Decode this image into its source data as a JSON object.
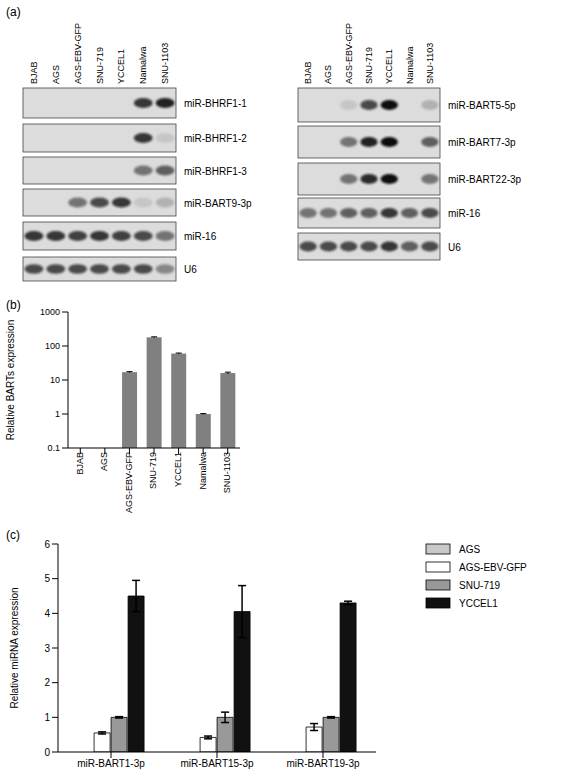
{
  "blots": {
    "panel_label": "(a)",
    "groups": [
      {
        "lanes": [
          "BJAB",
          "AGS",
          "AGS-EBV-GFP",
          "SNU-719",
          "YCCEL1",
          "Namalwa",
          "SNU-1103"
        ],
        "rows": [
          {
            "label": "miR-BHRF1-1",
            "bands": [
              0,
              0,
              0,
              0,
              0,
              0.8,
              0.9
            ]
          },
          {
            "label": "miR-BHRF1-2",
            "bands": [
              0,
              0,
              0,
              0,
              0,
              0.8,
              0.1
            ]
          },
          {
            "label": "miR-BHRF1-3",
            "bands": [
              0,
              0,
              0,
              0,
              0,
              0.5,
              0.6
            ]
          },
          {
            "label": "miR-BART9-3p",
            "bands": [
              0,
              0,
              0.5,
              0.7,
              0.8,
              0.1,
              0.2
            ]
          },
          {
            "label": "miR-16",
            "bands": [
              0.8,
              0.8,
              0.75,
              0.8,
              0.75,
              0.7,
              0.5
            ]
          },
          {
            "label": "U6",
            "bands": [
              0.7,
              0.7,
              0.7,
              0.7,
              0.7,
              0.7,
              0.4
            ]
          }
        ]
      },
      {
        "lanes": [
          "BJAB",
          "AGS",
          "AGS-EBV-GFP",
          "SNU-719",
          "YCCEL1",
          "Namalwa",
          "SNU-1103"
        ],
        "rows": [
          {
            "label": "miR-BART5-5p",
            "bands": [
              0,
              0,
              0.1,
              0.7,
              1,
              0,
              0.2
            ]
          },
          {
            "label": "miR-BART7-3p",
            "bands": [
              0,
              0,
              0.5,
              0.9,
              1,
              0,
              0.6
            ]
          },
          {
            "label": "miR-BART22-3p",
            "bands": [
              0,
              0,
              0.5,
              0.85,
              1,
              0,
              0.5
            ]
          },
          {
            "label": "miR-16",
            "bands": [
              0.5,
              0.5,
              0.6,
              0.6,
              0.8,
              0.6,
              0.7
            ]
          },
          {
            "label": "U6",
            "bands": [
              0.7,
              0.7,
              0.7,
              0.7,
              0.8,
              0.6,
              0.7
            ]
          }
        ]
      }
    ]
  },
  "chart_data": [
    {
      "panel_label": "(b)",
      "type": "bar",
      "categories": [
        "BJAB",
        "AGS",
        "AGS-EBV-GFP",
        "SNU-719",
        "YCCEL1",
        "Namalwa",
        "SNU-1103"
      ],
      "values": [
        null,
        null,
        17,
        180,
        60,
        1,
        16
      ],
      "errors": [
        null,
        null,
        0.6,
        6,
        2,
        0.03,
        1
      ],
      "y_label": "Relative BARTs expression",
      "log": "y",
      "ylim": [
        0.1,
        1000
      ],
      "yticks": [
        0.1,
        1,
        10,
        100,
        1000
      ],
      "color": "#808080"
    },
    {
      "panel_label": "(c)",
      "type": "bar",
      "categories": [
        "miR-BART1-3p",
        "miR-BART15-3p",
        "miR-BART19-3p"
      ],
      "series": [
        {
          "name": "AGS",
          "color": "#c8c8c8",
          "values": [
            0,
            0,
            0
          ],
          "errors": [
            0,
            0,
            0
          ]
        },
        {
          "name": "AGS-EBV-GFP",
          "color": "#ffffff",
          "values": [
            0.55,
            0.42,
            0.72
          ],
          "errors": [
            0.03,
            0.04,
            0.1
          ]
        },
        {
          "name": "SNU-719",
          "color": "#999999",
          "values": [
            1,
            1,
            1
          ],
          "errors": [
            0.02,
            0.15,
            0.02
          ]
        },
        {
          "name": "YCCEL1",
          "color": "#111111",
          "values": [
            4.5,
            4.05,
            4.3
          ],
          "errors": [
            0.45,
            0.75,
            0.05
          ]
        }
      ],
      "y_label": "Relative miRNA expression",
      "ylim": [
        0,
        6
      ],
      "yticks": [
        0,
        1,
        2,
        3,
        4,
        5,
        6
      ],
      "legend": "right"
    }
  ]
}
